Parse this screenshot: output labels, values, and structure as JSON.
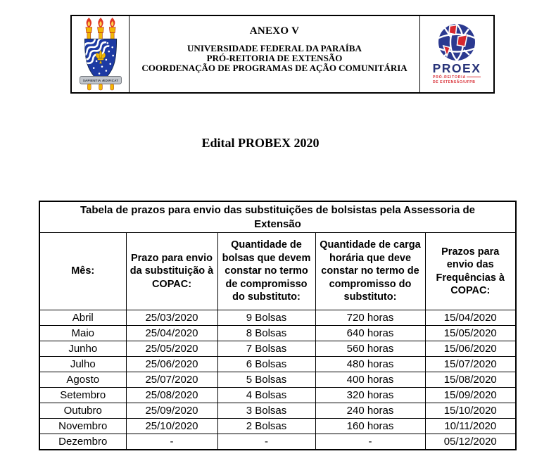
{
  "header": {
    "anexo": "ANEXO V",
    "org_lines": [
      "UNIVERSIDADE FEDERAL DA PARAÍBA",
      "PRÓ-REITORIA DE EXTENSÃO",
      "COORDENAÇÃO DE PROGRAMAS DE AÇÃO COMUNITÁRIA"
    ],
    "ufpb_logo": {
      "icon": "ufpb-coat-of-arms-icon",
      "motto": "SAPIENTIA ÆDIFICAT"
    },
    "proex_logo": {
      "icon": "proex-globe-icon",
      "name": "PROEX",
      "line1": "PRÓ-REITORIA",
      "line2": "DE EXTENSÃO/UFPB"
    }
  },
  "document_title": "Edital PROBEX 2020",
  "table": {
    "caption": "Tabela de prazos para envio das substituições de bolsistas pela Assessoria de Extensão",
    "columns": [
      "Mês:",
      "Prazo para envio da substituição à COPAC:",
      "Quantidade de bolsas que devem constar no termo de compromisso do substituto:",
      "Quantidade de carga horária que deve constar no termo de compromisso do substituto:",
      "Prazos para envio das Frequências à COPAC:"
    ],
    "rows": [
      [
        "Abril",
        "25/03/2020",
        "9 Bolsas",
        "720 horas",
        "15/04/2020"
      ],
      [
        "Maio",
        "25/04/2020",
        "8 Bolsas",
        "640 horas",
        "15/05/2020"
      ],
      [
        "Junho",
        "25/05/2020",
        "7 Bolsas",
        "560 horas",
        "15/06/2020"
      ],
      [
        "Julho",
        "25/06/2020",
        "6 Bolsas",
        "480 horas",
        "15/07/2020"
      ],
      [
        "Agosto",
        "25/07/2020",
        "5 Bolsas",
        "400 horas",
        "15/08/2020"
      ],
      [
        "Setembro",
        "25/08/2020",
        "4 Bolsas",
        "320 horas",
        "15/09/2020"
      ],
      [
        "Outubro",
        "25/09/2020",
        "3 Bolsas",
        "240 horas",
        "15/10/2020"
      ],
      [
        "Novembro",
        "25/10/2020",
        "2 Bolsas",
        "160 horas",
        "10/11/2020"
      ],
      [
        "Dezembro",
        "-",
        "-",
        "-",
        "05/12/2020"
      ]
    ]
  },
  "colors": {
    "text": "#000000",
    "border": "#000000",
    "proex_navy": "#2b3990",
    "proex_red": "#d7282f",
    "ufpb_shield_blue": "#1d3aa3",
    "ufpb_gold": "#f2b705",
    "ufpb_flame_red": "#e03622",
    "banner_silver": "#c3c7cd"
  }
}
